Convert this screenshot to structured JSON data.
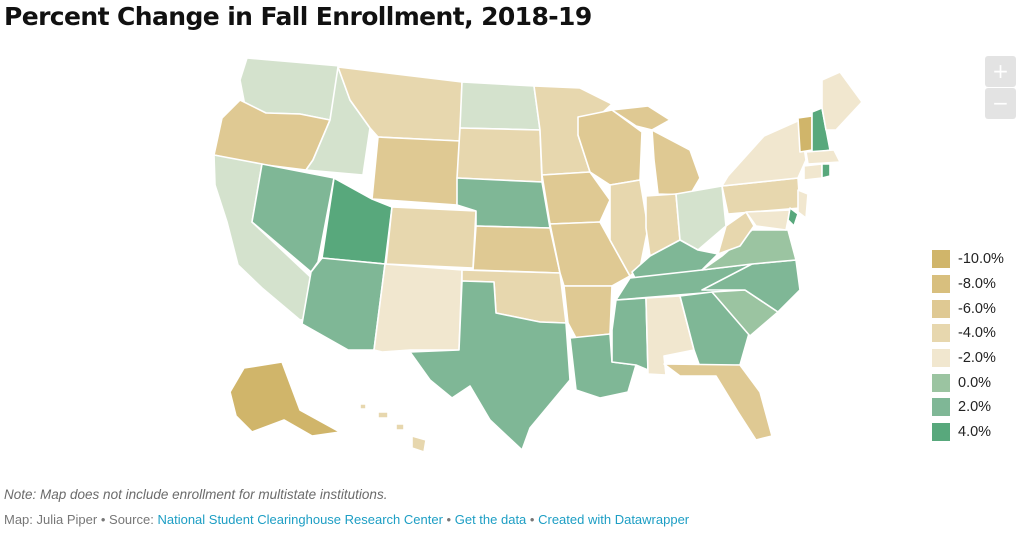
{
  "title": "Percent Change in Fall Enrollment, 2018-19",
  "zoom": {
    "in_label": "+",
    "out_label": "−"
  },
  "legend": [
    {
      "label": "-10.0%",
      "color": "#d0b56a"
    },
    {
      "label": "-8.0%",
      "color": "#d8bf7e"
    },
    {
      "label": "-6.0%",
      "color": "#dfc993"
    },
    {
      "label": "-4.0%",
      "color": "#e7d7ae"
    },
    {
      "label": "-2.0%",
      "color": "#f1e7cf"
    },
    {
      "label": "0.0%",
      "color": "#9bc4a1"
    },
    {
      "label": "2.0%",
      "color": "#7fb796"
    },
    {
      "label": "4.0%",
      "color": "#58a87c"
    }
  ],
  "note": "Note: Map does not include enrollment for multistate institutions.",
  "footer": {
    "map_credit": "Map: Julia Piper",
    "source_prefix": "Source:",
    "source": "National Student Clearinghouse Research Center",
    "get_data": "Get the data",
    "created_with": "Created with Datawrapper",
    "separator": "•"
  },
  "colors": {
    "decline_strong": "#d0b56a",
    "decline_mid": "#dfc993",
    "decline_light": "#e7d7ae",
    "decline_slight": "#f1e7cf",
    "flat_neutral": "#d4e2cd",
    "growth_light": "#9bc4a1",
    "growth": "#7fb796",
    "growth_strong": "#58a87c",
    "link": "#1d9ec4"
  }
}
